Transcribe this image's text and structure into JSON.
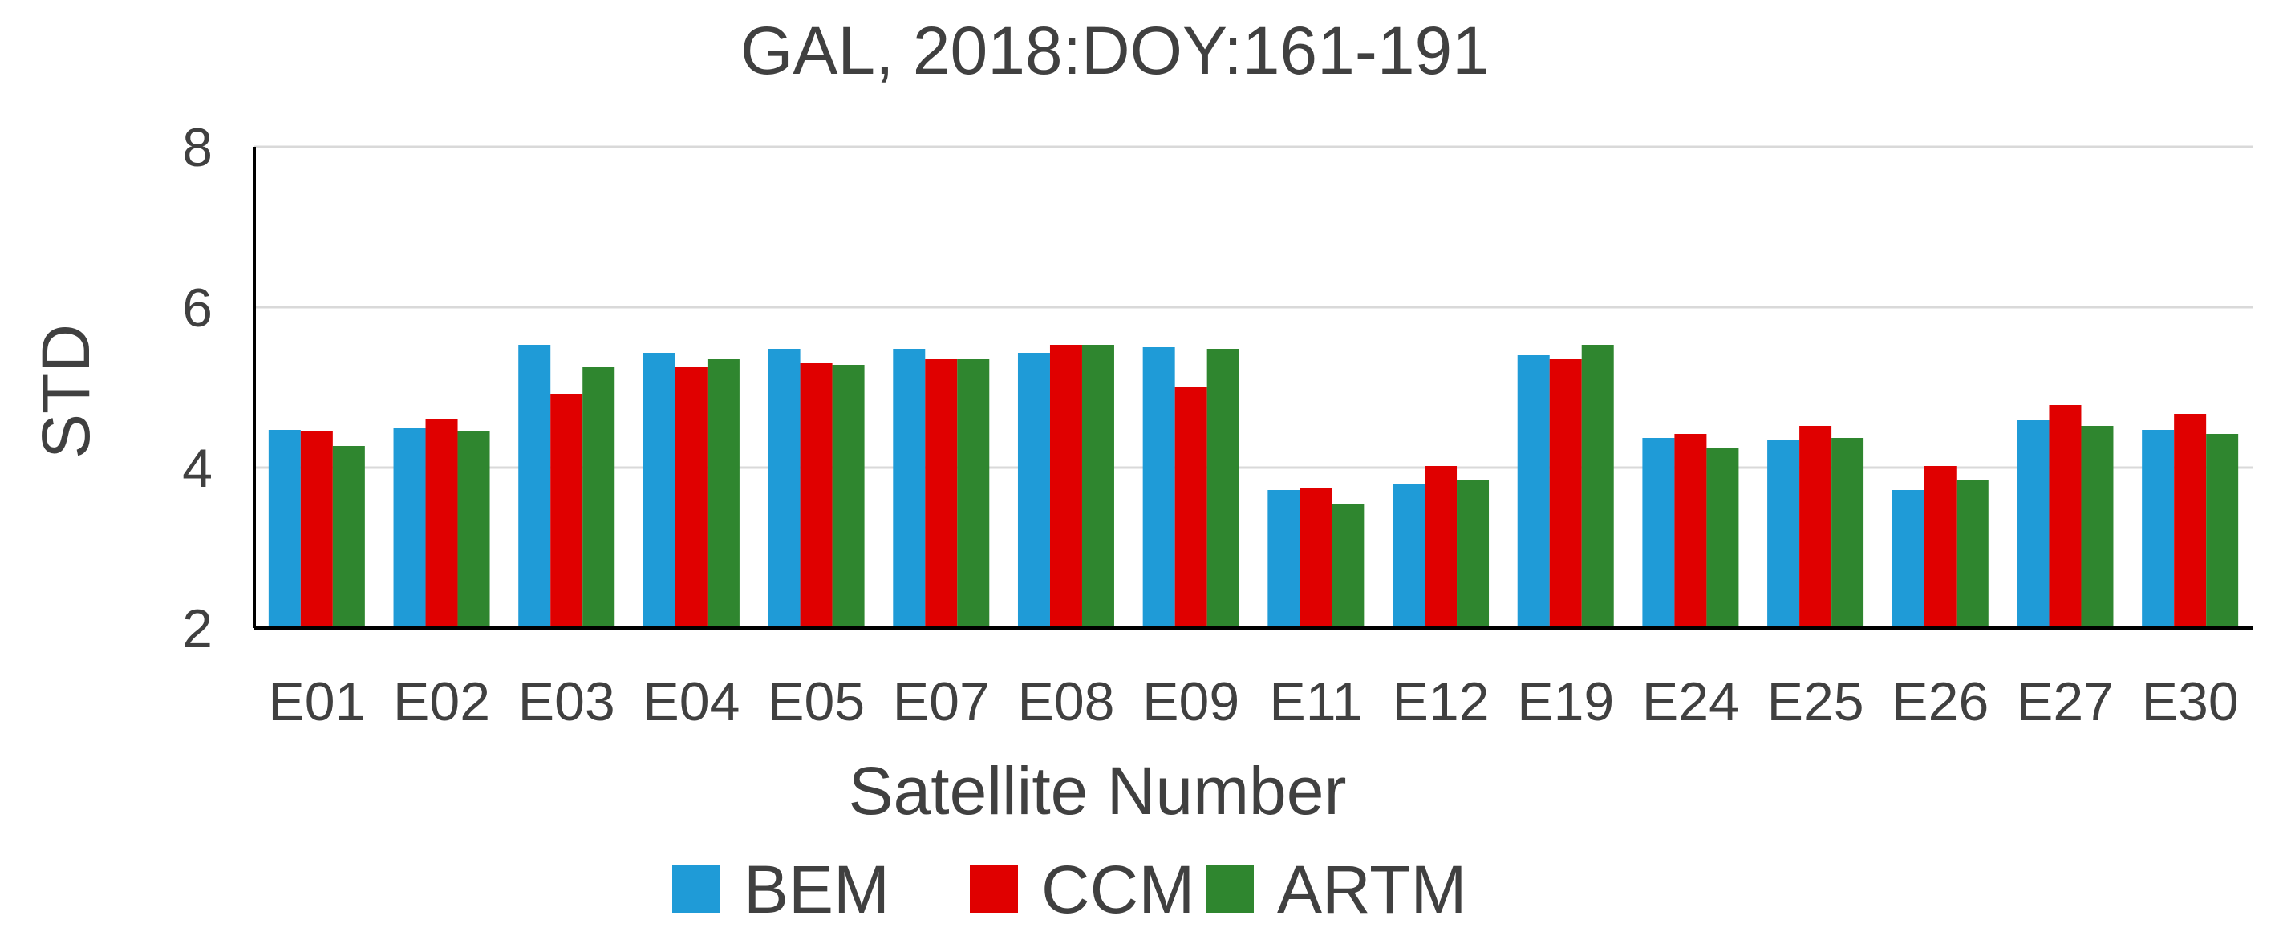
{
  "chart_data": {
    "type": "bar",
    "title": "GAL, 2018:DOY:161-191",
    "xlabel": "Satellite Number",
    "ylabel": "STD",
    "ylim": [
      2,
      8
    ],
    "yticks": [
      "2",
      "4",
      "6",
      "8"
    ],
    "grid": true,
    "legend_position": "bottom",
    "categories": [
      "E01",
      "E02",
      "E03",
      "E04",
      "E05",
      "E07",
      "E08",
      "E09",
      "E11",
      "E12",
      "E19",
      "E24",
      "E25",
      "E26",
      "E27",
      "E30"
    ],
    "series": [
      {
        "name": "BEM",
        "color": "#1f9bd7",
        "values": [
          4.47,
          4.49,
          5.53,
          5.43,
          5.48,
          5.48,
          5.43,
          5.5,
          3.72,
          3.79,
          5.4,
          4.37,
          4.34,
          3.72,
          4.59,
          4.47
        ]
      },
      {
        "name": "CCM",
        "color": "#e00000",
        "values": [
          4.45,
          4.6,
          4.92,
          5.25,
          5.3,
          5.35,
          5.53,
          5.0,
          3.74,
          4.02,
          5.35,
          4.42,
          4.52,
          4.02,
          4.78,
          4.67
        ]
      },
      {
        "name": "ARTM",
        "color": "#2f862f",
        "values": [
          4.27,
          4.45,
          5.25,
          5.35,
          5.28,
          5.35,
          5.53,
          5.48,
          3.54,
          3.85,
          5.53,
          4.25,
          4.37,
          3.85,
          4.52,
          4.42
        ]
      }
    ]
  }
}
